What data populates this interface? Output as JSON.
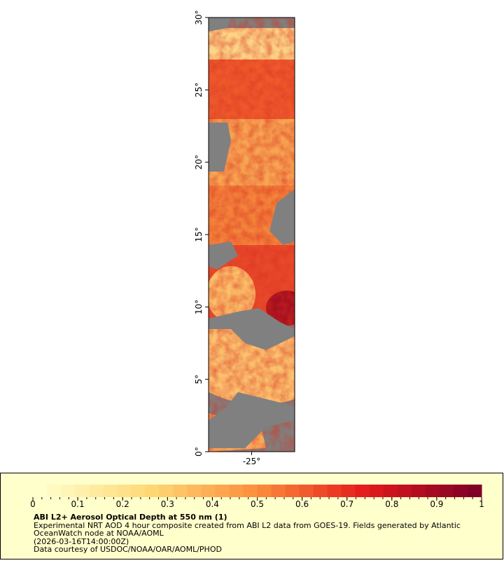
{
  "map": {
    "xlim": [
      -28,
      -22
    ],
    "ylim": [
      0,
      30
    ],
    "xticks": [
      {
        "value": -25,
        "label": "-25°"
      }
    ],
    "yticks": [
      {
        "value": 0,
        "label": "0°"
      },
      {
        "value": 5,
        "label": "5°"
      },
      {
        "value": 10,
        "label": "10°"
      },
      {
        "value": 15,
        "label": "15°"
      },
      {
        "value": 20,
        "label": "20°"
      },
      {
        "value": 25,
        "label": "25°"
      },
      {
        "value": 30,
        "label": "30°"
      }
    ]
  },
  "legend": {
    "range": [
      0,
      1
    ],
    "ticks": [
      0,
      0.1,
      0.2,
      0.3,
      0.4,
      0.5,
      0.6,
      0.7,
      0.8,
      0.9,
      1
    ],
    "title": "ABI L2+ Aerosol Optical Depth at 550 nm (1)",
    "lines": [
      "Experimental NRT AOD 4 hour composite created from ABI L2 data from GOES-19. Fields generated by Atlantic",
      "OceanWatch node at NOAA/AOML",
      "(2026-03-16T14:00:00Z)",
      "Data courtesy of USDOC/NOAA/OAR/AOML/PHOD"
    ]
  }
}
